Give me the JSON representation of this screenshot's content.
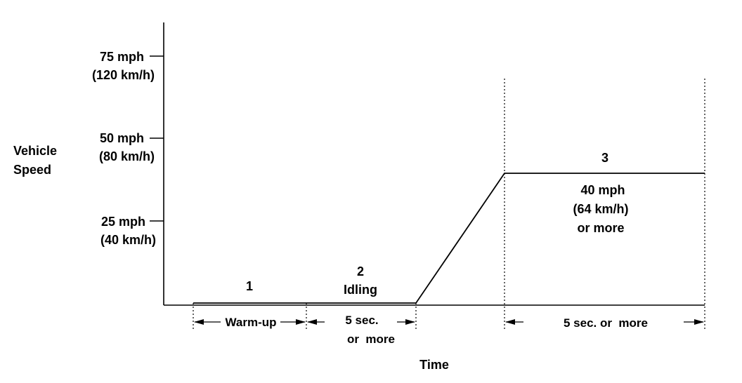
{
  "y_axis": {
    "title_line1": "Vehicle",
    "title_line2": "Speed",
    "ticks": [
      {
        "mph": "75 mph",
        "kmh": "(120 km/h)"
      },
      {
        "mph": "50 mph",
        "kmh": "(80 km/h)"
      },
      {
        "mph": "25 mph",
        "kmh": "(40 km/h)"
      }
    ]
  },
  "x_axis": {
    "title": "Time"
  },
  "phases": {
    "p1": {
      "number": "1",
      "duration": "Warm-up"
    },
    "p2": {
      "number": "2",
      "label": "Idling",
      "duration_line1": "5 sec.",
      "duration_line2": "or  more"
    },
    "p3": {
      "number": "3",
      "speed_line1": "40 mph",
      "speed_line2": "(64 km/h)",
      "speed_line3": "or more",
      "duration": "5 sec. or  more"
    }
  },
  "colors": {
    "line": "#000000",
    "background": "#ffffff"
  }
}
